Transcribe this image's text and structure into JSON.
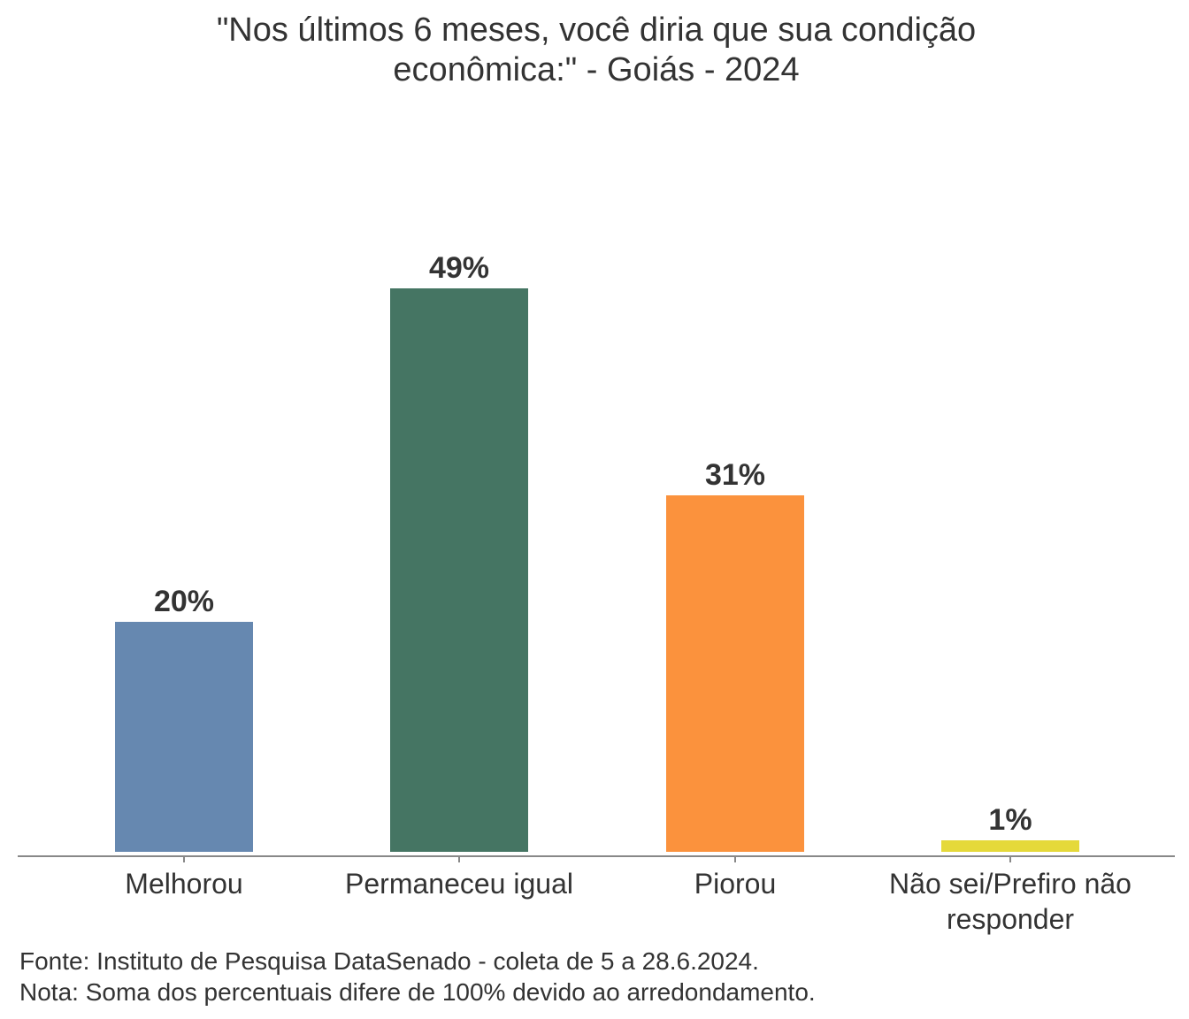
{
  "chart_data": {
    "type": "bar",
    "title_lines": [
      "\"Nos últimos 6 meses, você diria que sua condição",
      "econômica:\" - Goiás - 2024"
    ],
    "categories": [
      [
        "Melhorou"
      ],
      [
        "Permaneceu igual"
      ],
      [
        "Piorou"
      ],
      [
        "Não sei/Prefiro não",
        "responder"
      ]
    ],
    "values": [
      20,
      49,
      31,
      1
    ],
    "value_labels": [
      "20%",
      "49%",
      "31%",
      "1%"
    ],
    "colors": [
      "#6688B0",
      "#457563",
      "#FB923D",
      "#E5D93A"
    ],
    "xlabel": "",
    "ylabel": "",
    "ylim": [
      0,
      49
    ],
    "grid": false,
    "legend": "none"
  },
  "footnotes": [
    "Fonte: Instituto de Pesquisa DataSenado - coleta de 5 a 28.6.2024.",
    "Nota: Soma dos percentuais difere de 100% devido ao arredondamento."
  ]
}
